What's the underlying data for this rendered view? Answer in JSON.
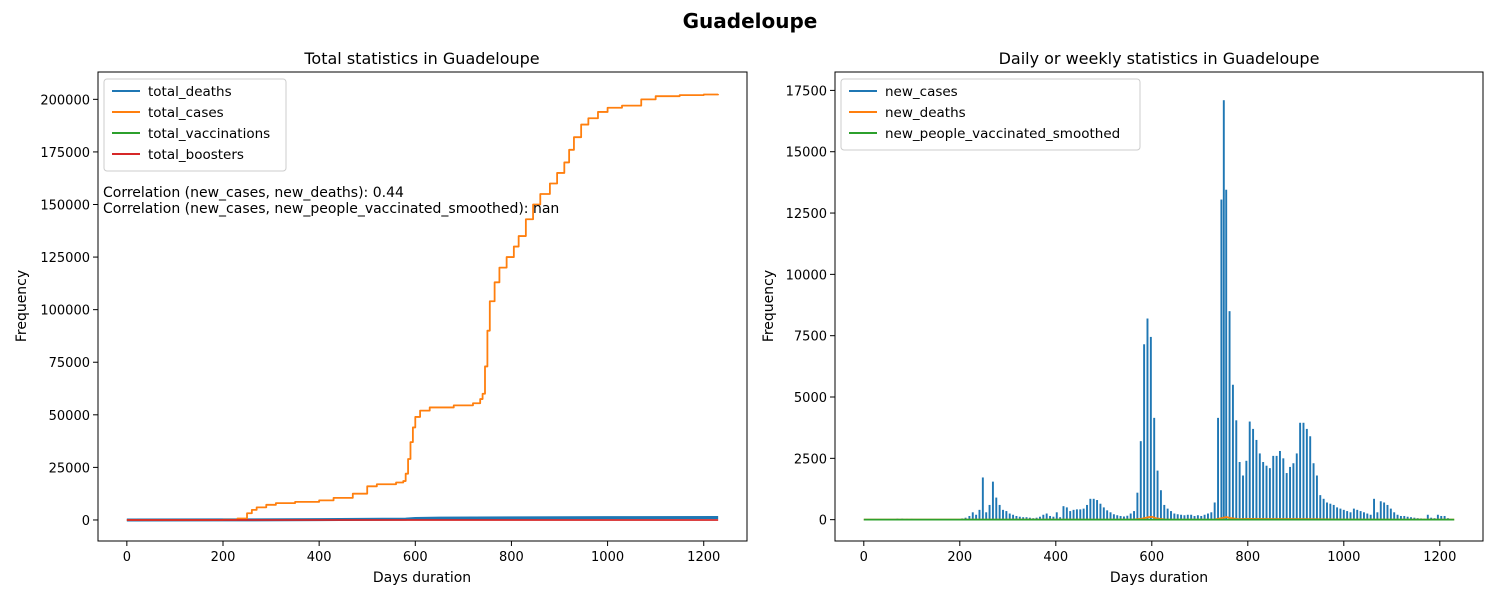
{
  "figure": {
    "suptitle": "Guadeloupe"
  },
  "colors": {
    "blue": "#1f77b4",
    "orange": "#ff7f0e",
    "green": "#2ca02c",
    "red": "#d62728"
  },
  "chart_data": [
    {
      "type": "line",
      "title": "Total statistics in Guadeloupe",
      "xlabel": "Days duration",
      "ylabel": "Frequency",
      "xlim": [
        -60,
        1290
      ],
      "ylim": [
        -10000,
        213000
      ],
      "xticks": [
        0,
        200,
        400,
        600,
        800,
        1000,
        1200
      ],
      "yticks": [
        0,
        25000,
        50000,
        75000,
        100000,
        125000,
        150000,
        175000,
        200000
      ],
      "grid": false,
      "legend_position": "upper-left",
      "annotations": [
        "Correlation (new_cases, new_deaths): 0.44",
        "Correlation (new_cases, new_people_vaccinated_smoothed): nan"
      ],
      "series": [
        {
          "name": "total_deaths",
          "color": "#1f77b4",
          "points": [
            [
              0,
              0
            ],
            [
              200,
              20
            ],
            [
              400,
              150
            ],
            [
              580,
              400
            ],
            [
              600,
              700
            ],
            [
              650,
              900
            ],
            [
              800,
              1000
            ],
            [
              1000,
              1100
            ],
            [
              1230,
              1200
            ]
          ]
        },
        {
          "name": "total_cases",
          "color": "#ff7f0e",
          "step": true,
          "points": [
            [
              0,
              0
            ],
            [
              200,
              120
            ],
            [
              230,
              700
            ],
            [
              250,
              3200
            ],
            [
              260,
              4800
            ],
            [
              270,
              6000
            ],
            [
              290,
              7200
            ],
            [
              310,
              8000
            ],
            [
              350,
              8600
            ],
            [
              400,
              9300
            ],
            [
              430,
              10500
            ],
            [
              470,
              12500
            ],
            [
              500,
              16000
            ],
            [
              520,
              17000
            ],
            [
              560,
              17800
            ],
            [
              575,
              18500
            ],
            [
              580,
              22000
            ],
            [
              585,
              29000
            ],
            [
              590,
              37000
            ],
            [
              595,
              44000
            ],
            [
              600,
              49000
            ],
            [
              610,
              52000
            ],
            [
              630,
              53500
            ],
            [
              680,
              54500
            ],
            [
              720,
              55500
            ],
            [
              735,
              57500
            ],
            [
              740,
              60000
            ],
            [
              745,
              73000
            ],
            [
              750,
              90000
            ],
            [
              755,
              104000
            ],
            [
              765,
              113000
            ],
            [
              775,
              120000
            ],
            [
              790,
              125000
            ],
            [
              805,
              130000
            ],
            [
              815,
              135000
            ],
            [
              830,
              143000
            ],
            [
              845,
              150000
            ],
            [
              860,
              155000
            ],
            [
              880,
              160000
            ],
            [
              895,
              165000
            ],
            [
              910,
              170000
            ],
            [
              920,
              176000
            ],
            [
              930,
              182000
            ],
            [
              945,
              188000
            ],
            [
              960,
              191000
            ],
            [
              980,
              194000
            ],
            [
              1000,
              196000
            ],
            [
              1030,
              197000
            ],
            [
              1070,
              200000
            ],
            [
              1100,
              201500
            ],
            [
              1150,
              202000
            ],
            [
              1200,
              202300
            ],
            [
              1230,
              202500
            ]
          ]
        },
        {
          "name": "total_vaccinations",
          "color": "#2ca02c",
          "points": []
        },
        {
          "name": "total_boosters",
          "color": "#d62728",
          "points": [
            [
              0,
              0
            ],
            [
              1230,
              0
            ]
          ]
        }
      ]
    },
    {
      "type": "bar",
      "title": "Daily or weekly statistics in Guadeloupe",
      "xlabel": "Days duration",
      "ylabel": "Frequency",
      "xlim": [
        -60,
        1290
      ],
      "ylim": [
        -870,
        18250
      ],
      "xticks": [
        0,
        200,
        400,
        600,
        800,
        1000,
        1200
      ],
      "yticks": [
        0,
        2500,
        5000,
        7500,
        10000,
        12500,
        15000,
        17500
      ],
      "grid": false,
      "legend_position": "upper-left",
      "series": [
        {
          "name": "new_cases",
          "color": "#1f77b4",
          "bar_width_days": 4,
          "points": [
            [
              70,
              40
            ],
            [
              80,
              40
            ],
            [
              90,
              30
            ],
            [
              100,
              30
            ],
            [
              205,
              50
            ],
            [
              212,
              80
            ],
            [
              220,
              150
            ],
            [
              227,
              300
            ],
            [
              234,
              200
            ],
            [
              241,
              400
            ],
            [
              248,
              1720
            ],
            [
              255,
              300
            ],
            [
              262,
              600
            ],
            [
              269,
              1550
            ],
            [
              276,
              900
            ],
            [
              283,
              600
            ],
            [
              290,
              400
            ],
            [
              297,
              350
            ],
            [
              304,
              250
            ],
            [
              311,
              200
            ],
            [
              318,
              150
            ],
            [
              325,
              120
            ],
            [
              332,
              100
            ],
            [
              339,
              100
            ],
            [
              346,
              80
            ],
            [
              353,
              60
            ],
            [
              360,
              80
            ],
            [
              367,
              120
            ],
            [
              374,
              200
            ],
            [
              381,
              250
            ],
            [
              388,
              150
            ],
            [
              395,
              120
            ],
            [
              402,
              300
            ],
            [
              409,
              100
            ],
            [
              416,
              550
            ],
            [
              423,
              500
            ],
            [
              430,
              350
            ],
            [
              437,
              400
            ],
            [
              444,
              420
            ],
            [
              451,
              420
            ],
            [
              458,
              450
            ],
            [
              465,
              600
            ],
            [
              472,
              850
            ],
            [
              479,
              850
            ],
            [
              486,
              800
            ],
            [
              493,
              650
            ],
            [
              500,
              500
            ],
            [
              507,
              380
            ],
            [
              514,
              300
            ],
            [
              521,
              220
            ],
            [
              528,
              180
            ],
            [
              535,
              150
            ],
            [
              542,
              130
            ],
            [
              549,
              160
            ],
            [
              556,
              250
            ],
            [
              563,
              350
            ],
            [
              570,
              1100
            ],
            [
              577,
              3200
            ],
            [
              584,
              7150
            ],
            [
              591,
              8200
            ],
            [
              598,
              7450
            ],
            [
              605,
              4150
            ],
            [
              612,
              2000
            ],
            [
              619,
              1200
            ],
            [
              626,
              600
            ],
            [
              633,
              450
            ],
            [
              640,
              350
            ],
            [
              647,
              250
            ],
            [
              654,
              220
            ],
            [
              661,
              200
            ],
            [
              668,
              180
            ],
            [
              675,
              200
            ],
            [
              682,
              200
            ],
            [
              689,
              150
            ],
            [
              696,
              180
            ],
            [
              703,
              150
            ],
            [
              710,
              200
            ],
            [
              717,
              250
            ],
            [
              724,
              300
            ],
            [
              731,
              700
            ],
            [
              738,
              4150
            ],
            [
              745,
              13050
            ],
            [
              750,
              17100
            ],
            [
              755,
              13450
            ],
            [
              762,
              8500
            ],
            [
              769,
              5500
            ],
            [
              776,
              4050
            ],
            [
              783,
              2350
            ],
            [
              790,
              1800
            ],
            [
              797,
              2400
            ],
            [
              804,
              4000
            ],
            [
              811,
              3700
            ],
            [
              818,
              3250
            ],
            [
              825,
              2700
            ],
            [
              832,
              2350
            ],
            [
              839,
              2200
            ],
            [
              846,
              2100
            ],
            [
              853,
              2600
            ],
            [
              860,
              2600
            ],
            [
              867,
              2800
            ],
            [
              874,
              2500
            ],
            [
              881,
              1900
            ],
            [
              888,
              2150
            ],
            [
              895,
              2300
            ],
            [
              902,
              2700
            ],
            [
              909,
              3950
            ],
            [
              916,
              3950
            ],
            [
              923,
              3700
            ],
            [
              930,
              3400
            ],
            [
              937,
              2300
            ],
            [
              944,
              1800
            ],
            [
              951,
              1000
            ],
            [
              958,
              850
            ],
            [
              965,
              700
            ],
            [
              972,
              650
            ],
            [
              979,
              600
            ],
            [
              986,
              500
            ],
            [
              993,
              450
            ],
            [
              1000,
              400
            ],
            [
              1007,
              350
            ],
            [
              1014,
              300
            ],
            [
              1021,
              450
            ],
            [
              1028,
              400
            ],
            [
              1035,
              350
            ],
            [
              1042,
              300
            ],
            [
              1049,
              250
            ],
            [
              1056,
              200
            ],
            [
              1063,
              850
            ],
            [
              1070,
              300
            ],
            [
              1077,
              750
            ],
            [
              1084,
              700
            ],
            [
              1091,
              600
            ],
            [
              1098,
              450
            ],
            [
              1105,
              300
            ],
            [
              1112,
              200
            ],
            [
              1119,
              150
            ],
            [
              1126,
              150
            ],
            [
              1133,
              120
            ],
            [
              1140,
              100
            ],
            [
              1147,
              80
            ],
            [
              1154,
              60
            ],
            [
              1161,
              50
            ],
            [
              1168,
              40
            ],
            [
              1175,
              200
            ],
            [
              1182,
              80
            ],
            [
              1189,
              60
            ],
            [
              1196,
              200
            ],
            [
              1203,
              150
            ],
            [
              1210,
              150
            ],
            [
              1217,
              60
            ]
          ]
        },
        {
          "name": "new_deaths",
          "color": "#ff7f0e",
          "points": [
            [
              0,
              0
            ],
            [
              560,
              0
            ],
            [
              580,
              40
            ],
            [
              590,
              90
            ],
            [
              600,
              120
            ],
            [
              610,
              50
            ],
            [
              630,
              0
            ],
            [
              730,
              0
            ],
            [
              745,
              60
            ],
            [
              755,
              110
            ],
            [
              765,
              60
            ],
            [
              780,
              20
            ],
            [
              800,
              30
            ],
            [
              850,
              25
            ],
            [
              900,
              25
            ],
            [
              940,
              20
            ],
            [
              1000,
              5
            ],
            [
              1230,
              0
            ]
          ]
        },
        {
          "name": "new_people_vaccinated_smoothed",
          "color": "#2ca02c",
          "points": [
            [
              0,
              0
            ],
            [
              1230,
              0
            ]
          ]
        }
      ]
    }
  ]
}
